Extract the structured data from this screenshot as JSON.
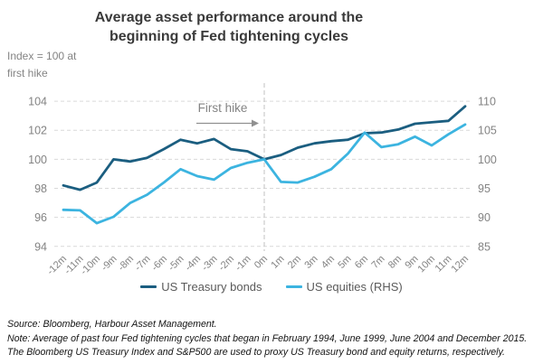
{
  "title": {
    "line1": "Average asset performance around the",
    "line2": "beginning of Fed tightening cycles"
  },
  "left_axis_note": {
    "line1": "Index = 100 at",
    "line2": "first hike"
  },
  "chart_data": {
    "type": "line",
    "categories": [
      "-12m",
      "-11m",
      "-10m",
      "-9m",
      "-8m",
      "-7m",
      "-6m",
      "-5m",
      "-4m",
      "-3m",
      "-2m",
      "-1m",
      "0m",
      "1m",
      "2m",
      "3m",
      "4m",
      "5m",
      "6m",
      "7m",
      "8m",
      "9m",
      "10m",
      "11m",
      "12m"
    ],
    "series": [
      {
        "name": "US Treasury bonds",
        "axis": "left",
        "color": "#1b5e80",
        "values": [
          98.2,
          97.9,
          98.4,
          100.0,
          99.85,
          100.1,
          100.7,
          101.35,
          101.1,
          101.4,
          100.7,
          100.55,
          100.0,
          100.3,
          100.8,
          101.1,
          101.25,
          101.35,
          101.8,
          101.85,
          102.05,
          102.45,
          102.55,
          102.65,
          103.65
        ]
      },
      {
        "name": "US equities (RHS)",
        "axis": "right",
        "color": "#3cb4e0",
        "values": [
          91.3,
          91.2,
          89.0,
          90.1,
          92.5,
          93.9,
          96.0,
          98.3,
          97.1,
          96.5,
          98.5,
          99.4,
          100.0,
          96.1,
          96.0,
          97.0,
          98.3,
          101.0,
          104.6,
          102.1,
          102.6,
          103.9,
          102.4,
          104.3,
          106.0
        ]
      }
    ],
    "left_axis": {
      "ticks": [
        104,
        102,
        100,
        98,
        96,
        94
      ],
      "range": [
        94,
        104
      ]
    },
    "right_axis": {
      "ticks": [
        110,
        105,
        100,
        95,
        90,
        85
      ],
      "range": [
        85,
        110
      ]
    },
    "annotation": {
      "text": "First hike",
      "at_category": "0m"
    },
    "grid": "dashed-horizontal",
    "zero_line": "dashed-vertical-at-0m",
    "legend_position": "bottom"
  },
  "legend": {
    "items": [
      {
        "label": "US Treasury bonds",
        "color": "#1b5e80"
      },
      {
        "label": "US equities (RHS)",
        "color": "#3cb4e0"
      }
    ]
  },
  "footnotes": {
    "source": "Source: Bloomberg, Harbour Asset Management.",
    "note": "Note: Average of past four Fed tightening cycles that began in February 1994, June 1999, June 2004 and December 2015.  The Bloomberg US Treasury Index and S&P500 are used to proxy US Treasury bond and equity returns, respectively."
  }
}
